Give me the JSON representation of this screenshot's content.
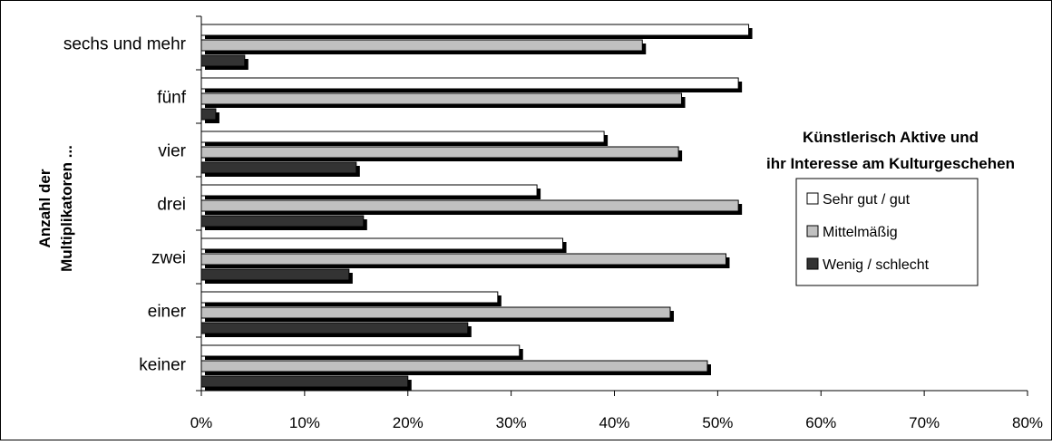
{
  "chart_data": {
    "type": "bar",
    "orientation": "horizontal",
    "title_lines": [
      "Künstlerisch Aktive und",
      "ihr Interesse am Kulturgeschehen"
    ],
    "ylabel_lines": [
      "Anzahl der",
      "Multiplikatoren ..."
    ],
    "xlabel": "",
    "xlim": [
      0,
      80
    ],
    "x_ticks": [
      "0%",
      "10%",
      "20%",
      "30%",
      "40%",
      "50%",
      "60%",
      "70%",
      "80%"
    ],
    "grid": false,
    "legend_position": "right",
    "categories": [
      "sechs und mehr",
      "fünf",
      "vier",
      "drei",
      "zwei",
      "einer",
      "keiner"
    ],
    "series": [
      {
        "name": "Sehr gut / gut",
        "color": "#ffffff",
        "values": [
          53,
          52,
          39,
          32.5,
          35,
          28.7,
          30.8
        ]
      },
      {
        "name": "Mittelmäßig",
        "color": "#c0c0c0",
        "values": [
          42.7,
          46.5,
          46.2,
          52,
          50.8,
          45.4,
          49
        ]
      },
      {
        "name": "Wenig / schlecht",
        "color": "#333333",
        "values": [
          4.2,
          1.4,
          15,
          15.7,
          14.3,
          25.8,
          20
        ]
      }
    ],
    "shadow_color": "#000000"
  }
}
